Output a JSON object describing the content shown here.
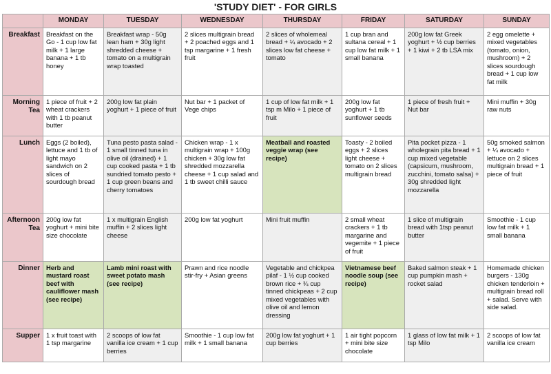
{
  "title": "'STUDY DIET' - FOR GIRLS",
  "days": [
    "MONDAY",
    "TUESDAY",
    "WEDNESDAY",
    "THURSDAY",
    "FRIDAY",
    "SATURDAY",
    "SUNDAY"
  ],
  "colors": {
    "header_pink": "#ebc7cb",
    "alt_column_gray": "#efefef",
    "recipe_green": "#d7e4bd"
  },
  "meals": [
    {
      "label": "Breakfast",
      "cells": [
        "Breakfast on the Go - 1 cup low fat milk + 1 large banana + 1 tb honey",
        "Breakfast wrap - 50g lean ham + 30g light shredded cheese + tomato on a multigrain wrap toasted",
        "2 slices multigrain bread + 2 poached eggs and 1 tsp margarine + 1 fresh fruit",
        "2 slices of wholemeal bread + ¼ avocado + 2 slices low fat cheese + tomato",
        "1 cup bran and sultana cereal + 1 cup low fat milk + 1 small banana",
        "200g low fat Greek yoghurt + ½ cup berries + 1 kiwi + 2 tb LSA mix",
        "2 egg omelette + mixed vegetables (tomato, onion, mushroom) + 2 slices sourdough bread + 1 cup low fat milk"
      ]
    },
    {
      "label": "Morning Tea",
      "cells": [
        "1 piece of fruit + 2 wheat crackers with 1 tb peanut butter",
        "200g low fat plain yoghurt + 1 piece of fruit",
        "Nut bar + 1 packet of Vege chips",
        "1 cup of low fat milk + 1 tsp m Milo + 1 piece of fruit",
        "200g low fat yoghurt + 1 tb sunflower seeds",
        "1 piece of fresh fruit + Nut bar",
        "Mini muffin + 30g raw nuts"
      ]
    },
    {
      "label": "Lunch",
      "cells": [
        "Eggs (2 boiled), lettuce and 1 tb of light mayo sandwich on 2 slices of sourdough bread",
        "Tuna pesto pasta salad - 1 small tinned tuna in olive oil (drained) + 1 cup cooked pasta + 1 tb sundried tomato pesto + 1 cup green beans and cherry tomatoes",
        "Chicken wrap - 1 x multigrain wrap + 100g chicken + 30g low fat shredded mozzarella cheese + 1 cup salad and 1 tb sweet chilli sauce",
        "Meatball and roasted veggie wrap (see recipe)",
        "Toasty - 2 boiled eggs + 2 slices light cheese + tomato on 2 slices multigrain bread",
        "Pita pocket pizza - 1 wholegrain pita bread + 1 cup mixed vegetable (capsicum, mushroom, zucchini, tomato salsa) + 30g shredded light mozzarella",
        "50g smoked salmon + ¼ avocado + lettuce on 2 slices multigrain bread + 1 piece of fruit"
      ]
    },
    {
      "label": "Afternoon Tea",
      "cells": [
        "200g low fat yoghurt + mini bite size chocolate",
        "1 x multigrain English muffin + 2 slices light cheese",
        "200g low fat yoghurt",
        "Mini fruit muffin",
        "2 small wheat crackers + 1 tb margarine and vegemite + 1 piece of fruit",
        "1 slice of multigrain bread with 1tsp peanut butter",
        "Smoothie - 1 cup low fat milk + 1 small banana"
      ]
    },
    {
      "label": "Dinner",
      "cells": [
        "Herb and mustard roast beef with cauliflower mash (see recipe)",
        "Lamb mini roast with sweet potato mash (see recipe)",
        "Prawn and rice noodle stir-fry + Asian greens",
        "Vegetable and chickpea pilaf - 1 ½ cup cooked brown rice + ¾ cup tinned chickpeas + 2 cup mixed vegetables with olive oil and lemon dressing",
        "Vietnamese beef noodle soup (see recipe)",
        "Baked salmon steak + 1 cup pumpkin mash + rocket salad",
        "Homemade chicken burgers - 130g chicken tenderloin + multigrain bread roll + salad. Serve with side salad."
      ]
    },
    {
      "label": "Supper",
      "cells": [
        "1 x fruit toast with 1 tsp margarine",
        "2 scoops of low fat vanilla ice cream + 1 cup berries",
        "Smoothie - 1 cup low fat milk + 1 small banana",
        "200g low fat yoghurt + 1 cup berries",
        "1 air tight popcorn + mini bite size chocolate",
        "1 glass of low fat milk + 1 tsp Milo",
        "2 scoops of low fat vanilla ice cream"
      ]
    }
  ]
}
